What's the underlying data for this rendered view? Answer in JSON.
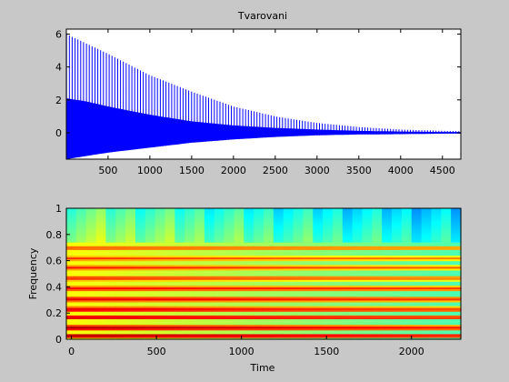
{
  "figure": {
    "background": "#c8c8c8"
  },
  "chart_data": [
    {
      "type": "line",
      "title": "Tvarovani",
      "xlabel": "",
      "ylabel": "",
      "xlim": [
        1,
        4720
      ],
      "ylim": [
        -1.6,
        6.3
      ],
      "xticks": [
        500,
        1000,
        1500,
        2000,
        2500,
        3000,
        3500,
        4000,
        4500
      ],
      "yticks": [
        0,
        2,
        4,
        6
      ],
      "grid": false,
      "line_color": "#0000ff",
      "series": [
        {
          "envelope_x": [
            1,
            250,
            500,
            1000,
            1500,
            2000,
            2500,
            3000,
            3500,
            4000,
            4500,
            4720
          ],
          "upper": [
            6.0,
            5.4,
            4.8,
            3.5,
            2.5,
            1.6,
            1.0,
            0.6,
            0.35,
            0.2,
            0.12,
            0.1
          ],
          "lower": [
            -1.6,
            -1.4,
            -1.2,
            -0.9,
            -0.6,
            -0.4,
            -0.25,
            -0.15,
            -0.1,
            -0.08,
            -0.05,
            -0.05
          ],
          "dense_band_upper": [
            2.1,
            1.9,
            1.6,
            1.1,
            0.7,
            0.45,
            0.3,
            0.2,
            0.12,
            0.08,
            0.05,
            0.05
          ]
        }
      ]
    },
    {
      "type": "heatmap",
      "title": "",
      "xlabel": "Time",
      "ylabel": "Frequency",
      "xlim": [
        -30,
        2290
      ],
      "ylim": [
        0,
        1
      ],
      "xticks": [
        0,
        500,
        1000,
        1500,
        2000
      ],
      "yticks": [
        0,
        0.2,
        0.4,
        0.6,
        0.8,
        1
      ],
      "colormap": "jet",
      "frequency_bins": 16,
      "time_frames": 40,
      "harmonic_peaks": [
        0.03,
        0.09,
        0.17,
        0.23,
        0.31,
        0.39,
        0.47,
        0.55,
        0.62,
        0.7
      ],
      "harmonic_intensity_start": [
        1.0,
        0.98,
        0.96,
        0.95,
        0.93,
        0.9,
        0.88,
        0.86,
        0.84,
        0.84
      ],
      "harmonic_intensity_end": [
        0.9,
        0.88,
        0.87,
        0.86,
        0.85,
        0.84,
        0.8,
        0.78,
        0.76,
        0.78
      ],
      "background_level_start": 0.62,
      "background_level_end": 0.45,
      "high_band_start": 0.74,
      "high_band_level_start": 0.5,
      "high_band_level_end": 0.34
    }
  ]
}
